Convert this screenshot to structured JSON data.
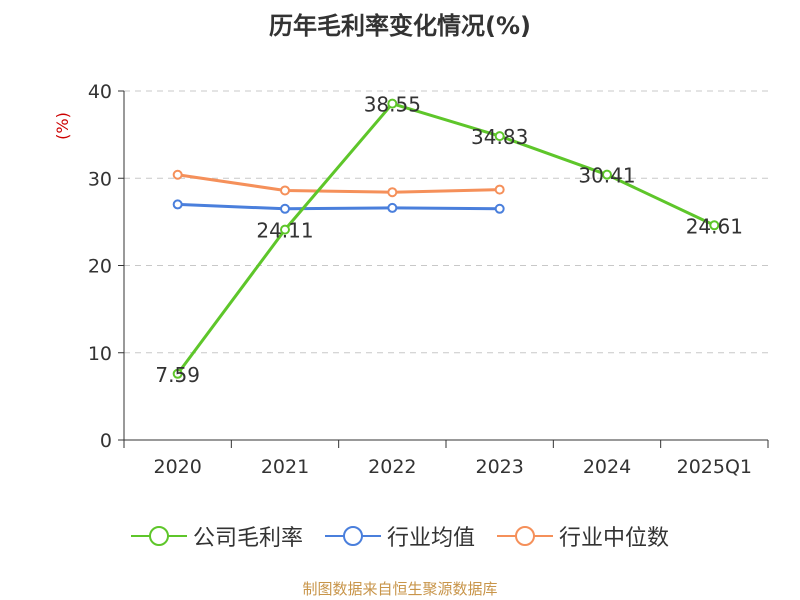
{
  "title": "历年毛利率变化情况(%)",
  "source_note": "制图数据来自恒生聚源数据库",
  "colors": {
    "company": "#5ec62a",
    "industry_avg": "#4a7fdc",
    "industry_median": "#f5905a",
    "grid": "#c8c8c8",
    "axis": "#333333"
  },
  "chart_data": {
    "type": "line",
    "title": "历年毛利率变化情况(%)",
    "xlabel": "",
    "ylabel": "(%)",
    "categories": [
      "2020",
      "2021",
      "2022",
      "2023",
      "2024",
      "2025Q1"
    ],
    "yticks": [
      "0",
      "10",
      "20",
      "30",
      "40"
    ],
    "ylim": [
      0,
      40
    ],
    "grid": true,
    "legend_position": "bottom",
    "series": [
      {
        "name": "公司毛利率",
        "color_key": "company",
        "values": [
          7.59,
          24.11,
          38.55,
          34.83,
          30.41,
          24.61
        ],
        "labels": [
          "7.59",
          "24.11",
          "38.55",
          "34.83",
          "30.41",
          "24.61"
        ]
      },
      {
        "name": "行业均值",
        "color_key": "industry_avg",
        "values": [
          27.0,
          26.5,
          26.6,
          26.5,
          null,
          null
        ]
      },
      {
        "name": "行业中位数",
        "color_key": "industry_median",
        "values": [
          30.4,
          28.6,
          28.4,
          28.7,
          null,
          null
        ]
      }
    ]
  }
}
